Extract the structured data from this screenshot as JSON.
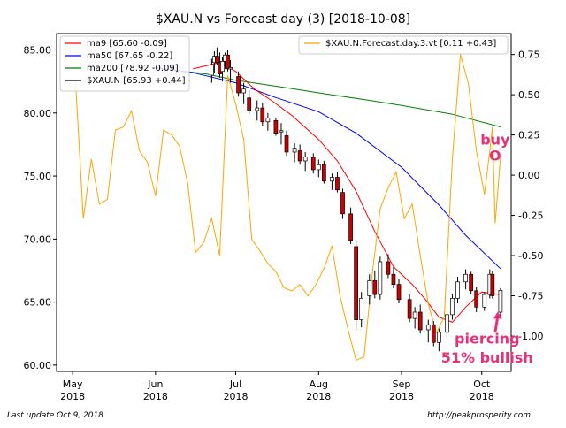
{
  "chart_data": {
    "type": "line",
    "title": "$XAU.N vs Forecast day (3)  [2018-10-08]",
    "xlabel": "",
    "ylabel": "",
    "grid": false,
    "x_range": [
      "2018-04-25",
      "2018-10-12"
    ],
    "ylim": [
      59.5,
      86.3
    ],
    "y2lim": [
      -1.22,
      0.88
    ],
    "y_ticks": [
      60,
      65,
      70,
      75,
      80,
      85
    ],
    "y_tick_labels": [
      "60.00",
      "65.00",
      "70.00",
      "75.00",
      "80.00",
      "85.00"
    ],
    "y2_ticks": [
      -1.0,
      -0.75,
      -0.5,
      -0.25,
      0.0,
      0.25,
      0.5,
      0.75
    ],
    "y2_tick_labels": [
      "-1.00",
      "-0.75",
      "-0.50",
      "-0.25",
      "0.00",
      "0.25",
      "0.50",
      "0.75"
    ],
    "x_ticks": [
      {
        "date": "2018-05-01",
        "label": "May",
        "year": "2018"
      },
      {
        "date": "2018-06-01",
        "label": "Jun",
        "year": "2018"
      },
      {
        "date": "2018-07-01",
        "label": "Jul",
        "year": "2018"
      },
      {
        "date": "2018-08-01",
        "label": "Aug",
        "year": "2018"
      },
      {
        "date": "2018-09-01",
        "label": "Sep",
        "year": "2018"
      },
      {
        "date": "2018-10-01",
        "label": "Oct",
        "year": "2018"
      }
    ],
    "legend_left": {
      "placement": "upper-left",
      "entries": [
        {
          "label": "ma9 [65.60 -0.09]",
          "color": "#ff0000"
        },
        {
          "label": "ma50 [67.65 -0.22]",
          "color": "#0000ff"
        },
        {
          "label": "ma200 [78.92 -0.09]",
          "color": "#008000"
        },
        {
          "label": "$XAU.N [65.93 +0.44]",
          "color": "#000000"
        }
      ]
    },
    "legend_right": {
      "placement": "upper-right",
      "entries": [
        {
          "label": "$XAU.N.Forecast.day.3.vt [0.11 +0.43]",
          "color": "#ffa500"
        }
      ]
    },
    "series": [
      {
        "name": "ma200 [78.92 -0.09]",
        "axis": "left",
        "color": "#008000",
        "points": [
          [
            "2018-06-01",
            83.6
          ],
          [
            "2018-06-20",
            83.1
          ],
          [
            "2018-07-01",
            82.6
          ],
          [
            "2018-07-20",
            82.0
          ],
          [
            "2018-08-01",
            81.6
          ],
          [
            "2018-08-20",
            81.0
          ],
          [
            "2018-09-01",
            80.6
          ],
          [
            "2018-09-20",
            79.9
          ],
          [
            "2018-10-08",
            78.9
          ]
        ]
      },
      {
        "name": "ma50 [67.65 -0.22]",
        "axis": "left",
        "color": "#0000ff",
        "points": [
          [
            "2018-06-01",
            83.6
          ],
          [
            "2018-06-15",
            83.2
          ],
          [
            "2018-07-01",
            82.4
          ],
          [
            "2018-07-15",
            81.3
          ],
          [
            "2018-08-01",
            80.1
          ],
          [
            "2018-08-15",
            78.4
          ],
          [
            "2018-09-01",
            75.7
          ],
          [
            "2018-09-15",
            72.7
          ],
          [
            "2018-09-25",
            70.3
          ],
          [
            "2018-10-08",
            67.65
          ]
        ]
      },
      {
        "name": "ma9 [65.60 -0.09]",
        "axis": "left",
        "color": "#ff0000",
        "points": [
          [
            "2018-06-15",
            83.5
          ],
          [
            "2018-06-25",
            84.0
          ],
          [
            "2018-07-01",
            83.3
          ],
          [
            "2018-07-08",
            81.9
          ],
          [
            "2018-07-15",
            80.9
          ],
          [
            "2018-07-22",
            79.8
          ],
          [
            "2018-08-01",
            77.9
          ],
          [
            "2018-08-08",
            76.2
          ],
          [
            "2018-08-15",
            73.8
          ],
          [
            "2018-08-22",
            70.6
          ],
          [
            "2018-08-29",
            67.8
          ],
          [
            "2018-09-05",
            66.4
          ],
          [
            "2018-09-10",
            65.2
          ],
          [
            "2018-09-15",
            63.8
          ],
          [
            "2018-09-20",
            63.4
          ],
          [
            "2018-09-25",
            64.6
          ],
          [
            "2018-10-01",
            65.8
          ],
          [
            "2018-10-08",
            65.6
          ]
        ]
      },
      {
        "name": "$XAU.N.Forecast.day.3.vt [0.11 +0.43]",
        "axis": "right",
        "color": "#ffa500",
        "points": [
          [
            "2018-05-02",
            0.6
          ],
          [
            "2018-05-05",
            -0.27
          ],
          [
            "2018-05-08",
            0.1
          ],
          [
            "2018-05-11",
            -0.18
          ],
          [
            "2018-05-14",
            -0.15
          ],
          [
            "2018-05-17",
            0.28
          ],
          [
            "2018-05-20",
            0.3
          ],
          [
            "2018-05-23",
            0.4
          ],
          [
            "2018-05-26",
            0.15
          ],
          [
            "2018-05-29",
            0.08
          ],
          [
            "2018-06-01",
            -0.13
          ],
          [
            "2018-06-04",
            0.28
          ],
          [
            "2018-06-07",
            0.25
          ],
          [
            "2018-06-10",
            0.18
          ],
          [
            "2018-06-13",
            -0.05
          ],
          [
            "2018-06-16",
            -0.48
          ],
          [
            "2018-06-19",
            -0.42
          ],
          [
            "2018-06-22",
            -0.27
          ],
          [
            "2018-06-25",
            -0.5
          ],
          [
            "2018-06-28",
            0.62
          ],
          [
            "2018-07-01",
            0.44
          ],
          [
            "2018-07-04",
            0.22
          ],
          [
            "2018-07-07",
            -0.4
          ],
          [
            "2018-07-10",
            -0.47
          ],
          [
            "2018-07-13",
            -0.55
          ],
          [
            "2018-07-16",
            -0.6
          ],
          [
            "2018-07-19",
            -0.7
          ],
          [
            "2018-07-22",
            -0.72
          ],
          [
            "2018-07-25",
            -0.68
          ],
          [
            "2018-07-28",
            -0.75
          ],
          [
            "2018-07-31",
            -0.68
          ],
          [
            "2018-08-03",
            -0.58
          ],
          [
            "2018-08-06",
            -0.44
          ],
          [
            "2018-08-09",
            -0.75
          ],
          [
            "2018-08-12",
            -0.96
          ],
          [
            "2018-08-15",
            -1.15
          ],
          [
            "2018-08-18",
            -1.13
          ],
          [
            "2018-08-21",
            -0.62
          ],
          [
            "2018-08-24",
            -0.21
          ],
          [
            "2018-08-27",
            -0.08
          ],
          [
            "2018-08-30",
            0.02
          ],
          [
            "2018-09-02",
            -0.27
          ],
          [
            "2018-09-05",
            -0.18
          ],
          [
            "2018-09-08",
            -0.5
          ],
          [
            "2018-09-11",
            -0.8
          ],
          [
            "2018-09-14",
            -0.98
          ],
          [
            "2018-09-17",
            -0.88
          ],
          [
            "2018-09-20",
            0.1
          ],
          [
            "2018-09-23",
            0.75
          ],
          [
            "2018-09-26",
            0.57
          ],
          [
            "2018-09-29",
            0.15
          ],
          [
            "2018-10-02",
            -0.12
          ],
          [
            "2018-10-04",
            0.15
          ],
          [
            "2018-10-05",
            0.3
          ],
          [
            "2018-10-06",
            -0.3
          ],
          [
            "2018-10-08",
            0.11
          ]
        ]
      },
      {
        "name": "$XAU.N [65.93 +0.44]",
        "axis": "left",
        "type": "candlestick",
        "up_color": "#ffffff",
        "down_color": "#cc0000",
        "candles": [
          {
            "d": "2018-06-22",
            "o": 83.0,
            "h": 84.3,
            "l": 82.4,
            "c": 83.8
          },
          {
            "d": "2018-06-23",
            "o": 84.0,
            "h": 84.9,
            "l": 83.2,
            "c": 84.5
          },
          {
            "d": "2018-06-24",
            "o": 84.5,
            "h": 85.2,
            "l": 83.8,
            "c": 84.0
          },
          {
            "d": "2018-06-25",
            "o": 84.0,
            "h": 84.8,
            "l": 82.8,
            "c": 83.1
          },
          {
            "d": "2018-06-26",
            "o": 83.3,
            "h": 84.4,
            "l": 82.5,
            "c": 84.1
          },
          {
            "d": "2018-06-27",
            "o": 84.1,
            "h": 84.8,
            "l": 83.5,
            "c": 84.6
          },
          {
            "d": "2018-06-28",
            "o": 84.6,
            "h": 85.0,
            "l": 83.3,
            "c": 83.5
          },
          {
            "d": "2018-06-29",
            "o": 83.5,
            "h": 84.2,
            "l": 82.4,
            "c": 83.6
          },
          {
            "d": "2018-07-02",
            "o": 82.9,
            "h": 83.3,
            "l": 81.3,
            "c": 81.6
          },
          {
            "d": "2018-07-04",
            "o": 81.6,
            "h": 82.4,
            "l": 80.7,
            "c": 81.9
          },
          {
            "d": "2018-07-06",
            "o": 81.2,
            "h": 81.8,
            "l": 79.9,
            "c": 80.2
          },
          {
            "d": "2018-07-09",
            "o": 80.2,
            "h": 81.0,
            "l": 79.4,
            "c": 80.4
          },
          {
            "d": "2018-07-11",
            "o": 80.4,
            "h": 80.8,
            "l": 79.0,
            "c": 79.3
          },
          {
            "d": "2018-07-13",
            "o": 79.3,
            "h": 80.0,
            "l": 78.6,
            "c": 79.6
          },
          {
            "d": "2018-07-16",
            "o": 79.4,
            "h": 79.6,
            "l": 78.2,
            "c": 78.4
          },
          {
            "d": "2018-07-18",
            "o": 78.5,
            "h": 79.2,
            "l": 77.5,
            "c": 78.6
          },
          {
            "d": "2018-07-20",
            "o": 78.2,
            "h": 78.6,
            "l": 76.6,
            "c": 76.9
          },
          {
            "d": "2018-07-23",
            "o": 76.9,
            "h": 77.6,
            "l": 76.1,
            "c": 77.2
          },
          {
            "d": "2018-07-25",
            "o": 77.0,
            "h": 77.5,
            "l": 75.9,
            "c": 76.2
          },
          {
            "d": "2018-07-27",
            "o": 76.2,
            "h": 76.9,
            "l": 75.4,
            "c": 76.5
          },
          {
            "d": "2018-07-30",
            "o": 76.5,
            "h": 76.8,
            "l": 75.2,
            "c": 75.5
          },
          {
            "d": "2018-08-01",
            "o": 75.5,
            "h": 76.3,
            "l": 74.9,
            "c": 75.9
          },
          {
            "d": "2018-08-03",
            "o": 75.9,
            "h": 76.2,
            "l": 74.4,
            "c": 74.6
          },
          {
            "d": "2018-08-06",
            "o": 74.6,
            "h": 75.2,
            "l": 73.9,
            "c": 74.9
          },
          {
            "d": "2018-08-08",
            "o": 74.9,
            "h": 75.3,
            "l": 73.7,
            "c": 73.9
          },
          {
            "d": "2018-08-10",
            "o": 73.7,
            "h": 74.0,
            "l": 71.6,
            "c": 72.0
          },
          {
            "d": "2018-08-13",
            "o": 72.0,
            "h": 72.5,
            "l": 69.6,
            "c": 69.9
          },
          {
            "d": "2018-08-15",
            "o": 69.4,
            "h": 69.9,
            "l": 62.8,
            "c": 63.6
          },
          {
            "d": "2018-08-17",
            "o": 63.6,
            "h": 65.8,
            "l": 63.0,
            "c": 65.3
          },
          {
            "d": "2018-08-20",
            "o": 65.5,
            "h": 67.2,
            "l": 64.8,
            "c": 66.7
          },
          {
            "d": "2018-08-22",
            "o": 66.7,
            "h": 67.5,
            "l": 65.3,
            "c": 65.6
          },
          {
            "d": "2018-08-24",
            "o": 65.6,
            "h": 68.6,
            "l": 65.2,
            "c": 68.2
          },
          {
            "d": "2018-08-27",
            "o": 68.2,
            "h": 68.8,
            "l": 66.9,
            "c": 67.2
          },
          {
            "d": "2018-08-29",
            "o": 67.2,
            "h": 67.8,
            "l": 66.1,
            "c": 66.4
          },
          {
            "d": "2018-08-31",
            "o": 66.4,
            "h": 66.8,
            "l": 64.9,
            "c": 65.2
          },
          {
            "d": "2018-09-04",
            "o": 65.2,
            "h": 65.6,
            "l": 63.4,
            "c": 63.7
          },
          {
            "d": "2018-09-06",
            "o": 63.7,
            "h": 64.6,
            "l": 62.9,
            "c": 64.2
          },
          {
            "d": "2018-09-08",
            "o": 64.2,
            "h": 64.8,
            "l": 62.5,
            "c": 62.8
          },
          {
            "d": "2018-09-11",
            "o": 62.8,
            "h": 63.6,
            "l": 61.8,
            "c": 63.2
          },
          {
            "d": "2018-09-13",
            "o": 63.2,
            "h": 63.5,
            "l": 61.5,
            "c": 61.8
          },
          {
            "d": "2018-09-15",
            "o": 61.8,
            "h": 62.9,
            "l": 61.1,
            "c": 62.6
          },
          {
            "d": "2018-09-18",
            "o": 62.6,
            "h": 64.4,
            "l": 62.2,
            "c": 64.0
          },
          {
            "d": "2018-09-20",
            "o": 64.0,
            "h": 65.6,
            "l": 63.6,
            "c": 65.3
          },
          {
            "d": "2018-09-22",
            "o": 65.3,
            "h": 67.0,
            "l": 64.9,
            "c": 66.6
          },
          {
            "d": "2018-09-25",
            "o": 66.6,
            "h": 67.6,
            "l": 66.0,
            "c": 67.2
          },
          {
            "d": "2018-09-27",
            "o": 67.2,
            "h": 67.4,
            "l": 65.6,
            "c": 65.9
          },
          {
            "d": "2018-09-29",
            "o": 65.9,
            "h": 66.2,
            "l": 64.2,
            "c": 64.6
          },
          {
            "d": "2018-10-02",
            "o": 64.6,
            "h": 65.8,
            "l": 64.3,
            "c": 65.6
          },
          {
            "d": "2018-10-04",
            "o": 65.6,
            "h": 67.6,
            "l": 65.3,
            "c": 67.2
          },
          {
            "d": "2018-10-05",
            "o": 67.2,
            "h": 67.5,
            "l": 65.3,
            "c": 65.5
          },
          {
            "d": "2018-10-08",
            "o": 64.2,
            "h": 66.1,
            "l": 63.8,
            "c": 65.93
          }
        ]
      }
    ],
    "annotations": [
      {
        "text": "buy",
        "color": "#e8307a",
        "kind": "text",
        "x": "2018-10-06",
        "y_right": 0.19
      },
      {
        "text": "O",
        "color": "#e8307a",
        "kind": "text",
        "x": "2018-10-06",
        "y_right": 0.09
      },
      {
        "text": "piercing",
        "color": "#e8307a",
        "kind": "text",
        "x": "2018-10-03",
        "y": 61.7
      },
      {
        "text": "51% bullish",
        "color": "#e8307a",
        "kind": "text",
        "x": "2018-10-03",
        "y": 60.2
      },
      {
        "kind": "arrow",
        "color": "#e8307a",
        "from": [
          "2018-10-06",
          62.6
        ],
        "to": [
          "2018-10-07",
          64.1
        ]
      }
    ]
  },
  "footer": {
    "last_update": "Last update Oct  9, 2018",
    "source_url": "http://peakprosperity.com"
  }
}
